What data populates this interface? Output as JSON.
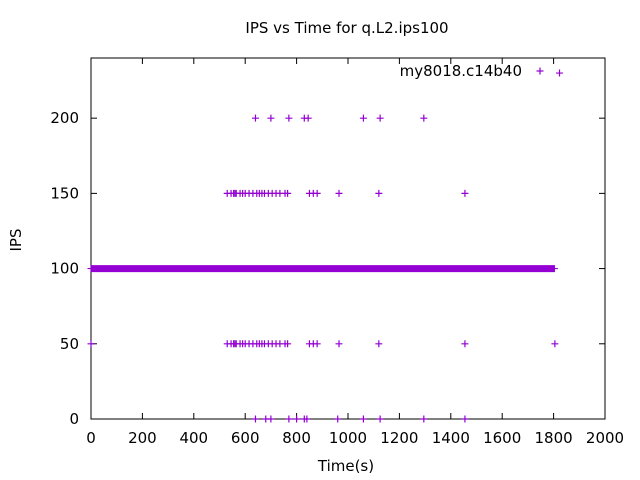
{
  "chart_data": {
    "type": "scatter",
    "title": "IPS vs Time for q.L2.ips100",
    "xlabel": "Time(s)",
    "ylabel": "IPS",
    "xlim": [
      0,
      2000
    ],
    "ylim": [
      0,
      240
    ],
    "xticks": [
      0,
      200,
      400,
      600,
      800,
      1000,
      1200,
      1400,
      1600,
      1800,
      2000
    ],
    "yticks": [
      0,
      50,
      100,
      150,
      200
    ],
    "grid": false,
    "legend_position": "top-right",
    "marker": "plus",
    "series": [
      {
        "name": "my8018.c14b40",
        "color": "#9400D3",
        "dense_ranges": [
          {
            "y": 100,
            "x_start": 0,
            "x_end": 1805,
            "step": 3
          }
        ],
        "points": [
          [
            0,
            50
          ],
          [
            530,
            50
          ],
          [
            545,
            50
          ],
          [
            555,
            50
          ],
          [
            560,
            50
          ],
          [
            565,
            50
          ],
          [
            580,
            50
          ],
          [
            590,
            50
          ],
          [
            600,
            50
          ],
          [
            615,
            50
          ],
          [
            630,
            50
          ],
          [
            645,
            50
          ],
          [
            655,
            50
          ],
          [
            665,
            50
          ],
          [
            675,
            50
          ],
          [
            690,
            50
          ],
          [
            705,
            50
          ],
          [
            720,
            50
          ],
          [
            735,
            50
          ],
          [
            755,
            50
          ],
          [
            765,
            50
          ],
          [
            850,
            50
          ],
          [
            865,
            50
          ],
          [
            880,
            50
          ],
          [
            965,
            50
          ],
          [
            1120,
            50
          ],
          [
            1455,
            50
          ],
          [
            1805,
            50
          ],
          [
            530,
            150
          ],
          [
            545,
            150
          ],
          [
            555,
            150
          ],
          [
            560,
            150
          ],
          [
            565,
            150
          ],
          [
            580,
            150
          ],
          [
            590,
            150
          ],
          [
            600,
            150
          ],
          [
            615,
            150
          ],
          [
            630,
            150
          ],
          [
            645,
            150
          ],
          [
            655,
            150
          ],
          [
            665,
            150
          ],
          [
            675,
            150
          ],
          [
            690,
            150
          ],
          [
            705,
            150
          ],
          [
            720,
            150
          ],
          [
            735,
            150
          ],
          [
            755,
            150
          ],
          [
            765,
            150
          ],
          [
            850,
            150
          ],
          [
            865,
            150
          ],
          [
            880,
            150
          ],
          [
            965,
            150
          ],
          [
            1120,
            150
          ],
          [
            1455,
            150
          ],
          [
            640,
            200
          ],
          [
            700,
            200
          ],
          [
            770,
            200
          ],
          [
            830,
            200
          ],
          [
            845,
            200
          ],
          [
            1060,
            200
          ],
          [
            1125,
            200
          ],
          [
            1295,
            200
          ],
          [
            640,
            0
          ],
          [
            680,
            0
          ],
          [
            700,
            0
          ],
          [
            770,
            0
          ],
          [
            800,
            0
          ],
          [
            830,
            0
          ],
          [
            840,
            0
          ],
          [
            960,
            0
          ],
          [
            1060,
            0
          ],
          [
            1125,
            0
          ],
          [
            1295,
            0
          ],
          [
            1455,
            0
          ],
          [
            1823,
            230
          ]
        ]
      }
    ]
  }
}
